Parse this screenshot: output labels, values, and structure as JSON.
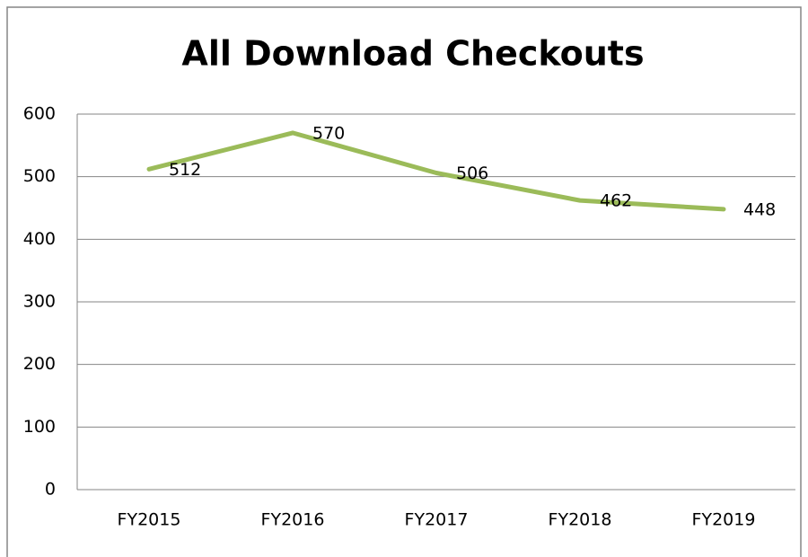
{
  "chart_data": {
    "type": "line",
    "title": "All Download Checkouts",
    "categories": [
      "FY2015",
      "FY2016",
      "FY2017",
      "FY2018",
      "FY2019"
    ],
    "series": [
      {
        "name": "All Download Checkouts",
        "color": "#9bbb59",
        "values": [
          512,
          570,
          506,
          462,
          448
        ]
      }
    ],
    "ylim": [
      0,
      600
    ],
    "yticks": [
      0,
      100,
      200,
      300,
      400,
      500,
      600
    ],
    "grid": true,
    "data_labels": true
  }
}
